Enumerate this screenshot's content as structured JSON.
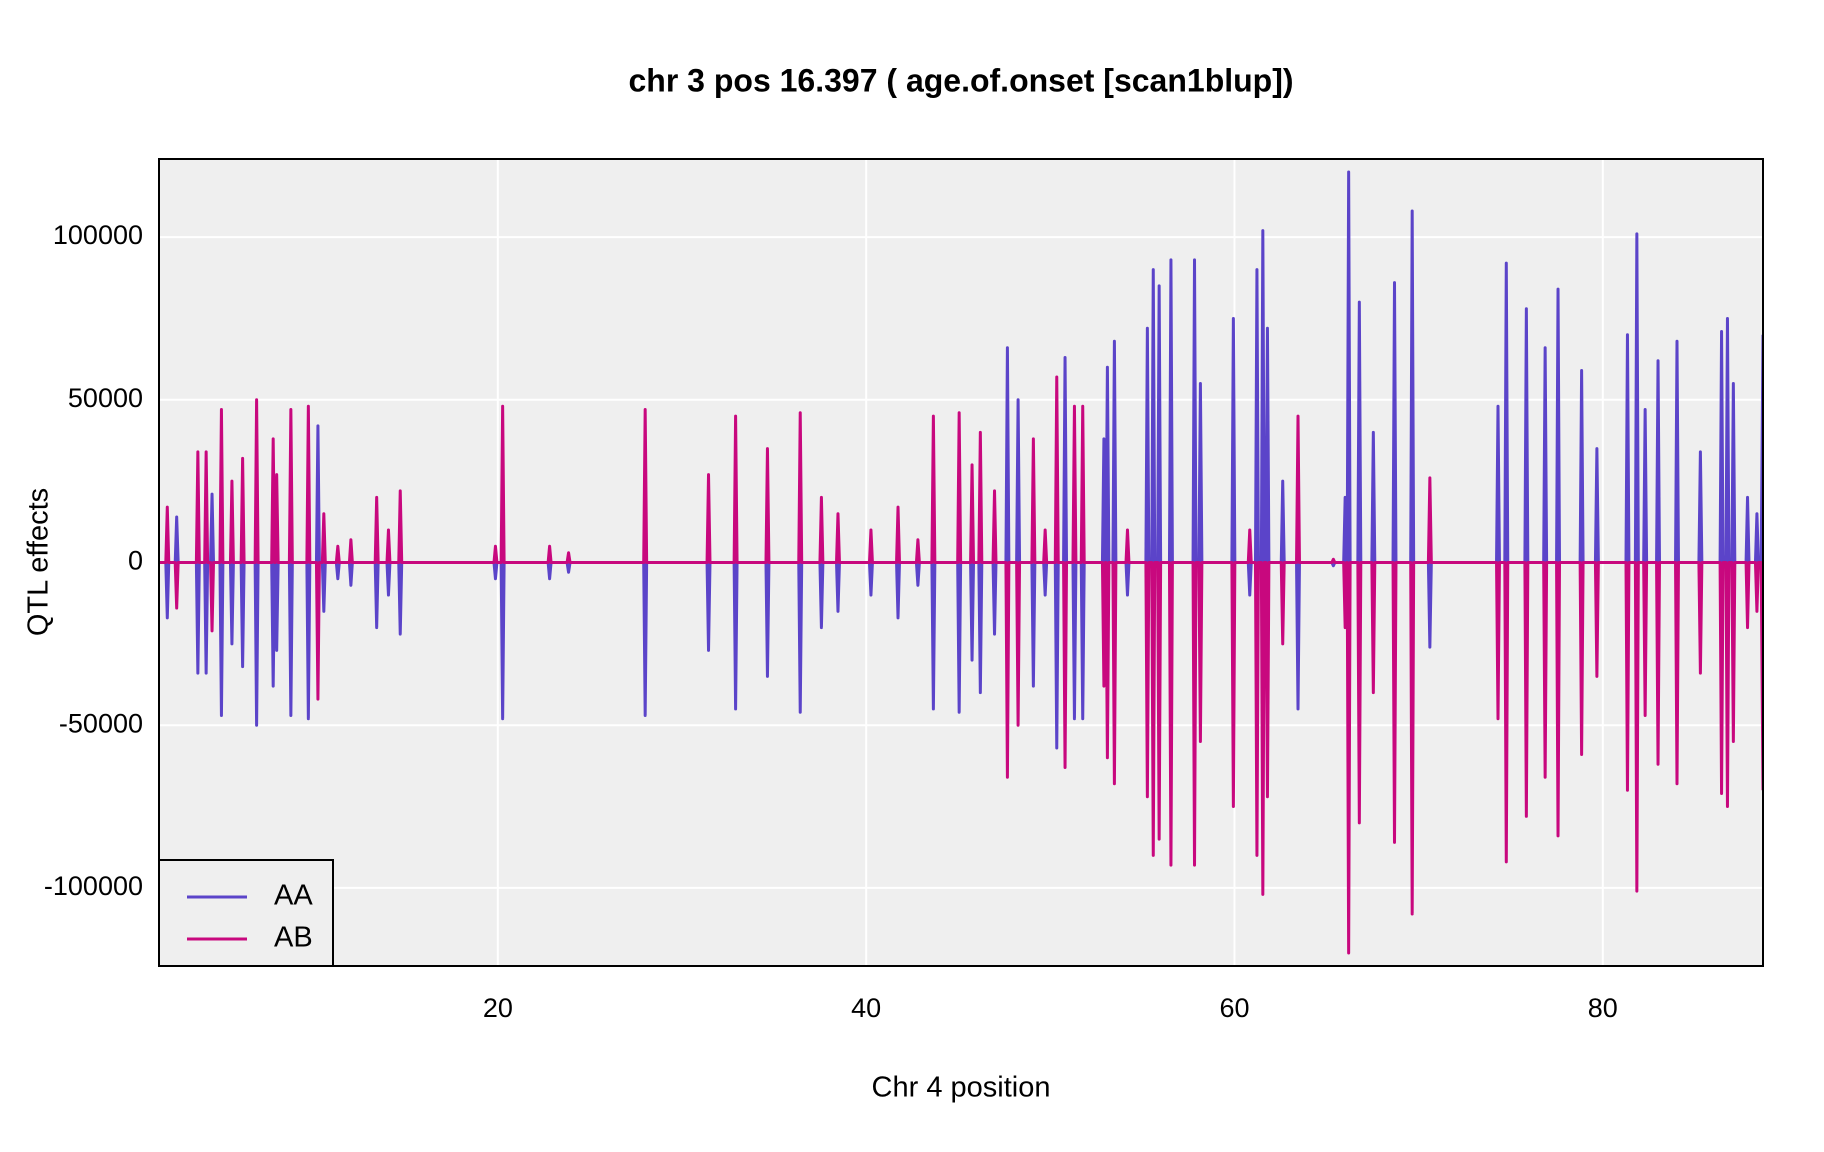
{
  "chart_data": {
    "type": "line",
    "title": "chr 3 pos 16.397 ( age.of.onset  [scan1blup])",
    "xlabel": "Chr 4 position",
    "ylabel": "QTL effects",
    "xlim": [
      1.6,
      88.7
    ],
    "ylim": [
      -124000,
      124000
    ],
    "xticks": [
      20,
      40,
      60,
      80
    ],
    "yticks": [
      -100000,
      -50000,
      0,
      50000,
      100000
    ],
    "grid": true,
    "legend": "lower left",
    "x": [
      1.6,
      1.97,
      2.05,
      2.13,
      2.48,
      2.56,
      2.64,
      3.63,
      3.71,
      3.79,
      4.08,
      4.16,
      4.24,
      4.4,
      4.48,
      4.56,
      4.91,
      4.99,
      5.07,
      5.48,
      5.56,
      5.64,
      6.06,
      6.14,
      6.22,
      6.82,
      6.9,
      6.98,
      7.72,
      7.8,
      7.88,
      7.91,
      7.99,
      8.07,
      8.68,
      8.76,
      8.84,
      9.63,
      9.71,
      9.79,
      10.15,
      10.23,
      10.31,
      10.47,
      10.55,
      10.63,
      11.23,
      11.31,
      11.39,
      11.94,
      12.02,
      12.1,
      13.34,
      13.42,
      13.5,
      13.98,
      14.06,
      14.14,
      14.62,
      14.7,
      14.78,
      19.79,
      19.87,
      19.95,
      20.18,
      20.26,
      20.34,
      22.73,
      22.81,
      22.89,
      23.76,
      23.84,
      23.92,
      27.92,
      28,
      28.08,
      31.36,
      31.44,
      31.52,
      32.83,
      32.91,
      32.99,
      34.56,
      34.64,
      34.72,
      36.34,
      36.42,
      36.5,
      37.49,
      37.57,
      37.65,
      38.39,
      38.47,
      38.55,
      40.18,
      40.26,
      40.34,
      41.65,
      41.73,
      41.81,
      42.73,
      42.81,
      42.89,
      43.57,
      43.65,
      43.73,
      44.97,
      45.05,
      45.13,
      45.67,
      45.75,
      45.83,
      46.12,
      46.2,
      46.28,
      46.89,
      46.97,
      47.05,
      47.59,
      47.67,
      47.75,
      48.17,
      48.25,
      48.33,
      49,
      49.08,
      49.16,
      49.64,
      49.72,
      49.8,
      50.27,
      50.35,
      50.43,
      50.72,
      50.8,
      50.88,
      51.23,
      51.31,
      51.39,
      51.68,
      51.76,
      51.84,
      52.83,
      52.91,
      52.99,
      53.02,
      53.1,
      53.18,
      53.4,
      53.48,
      53.56,
      54.11,
      54.19,
      54.27,
      55.19,
      55.27,
      55.35,
      55.51,
      55.59,
      55.67,
      55.83,
      55.91,
      55.99,
      56.47,
      56.55,
      56.63,
      57.75,
      57.83,
      57.91,
      58.07,
      58.15,
      58.23,
      59.86,
      59.94,
      60.02,
      60.75,
      60.83,
      60.91,
      61.14,
      61.22,
      61.3,
      61.46,
      61.54,
      61.62,
      61.71,
      61.79,
      61.87,
      62.54,
      62.62,
      62.7,
      63.37,
      63.45,
      63.53,
      65.29,
      65.37,
      65.45,
      65.93,
      66.01,
      66.09,
      66.12,
      66.2,
      66.28,
      66.7,
      66.78,
      66.86,
      67.46,
      67.54,
      67.62,
      68.61,
      68.69,
      68.77,
      69.57,
      69.65,
      69.73,
      70.53,
      70.61,
      70.69,
      74.23,
      74.31,
      74.39,
      74.68,
      74.76,
      74.84,
      75.77,
      75.85,
      75.93,
      76.79,
      76.87,
      76.95,
      77.49,
      77.57,
      77.65,
      78.77,
      78.85,
      78.93,
      79.6,
      79.68,
      79.76,
      81.26,
      81.34,
      81.42,
      81.77,
      81.85,
      81.93,
      82.22,
      82.3,
      82.38,
      82.92,
      83,
      83.08,
      83.95,
      84.03,
      84.11,
      85.22,
      85.3,
      85.38,
      86.37,
      86.45,
      86.53,
      86.69,
      86.77,
      86.85,
      87.01,
      87.09,
      87.17,
      87.78,
      87.86,
      87.94,
      88.29,
      88.37,
      88.45,
      88.6,
      88.7
    ],
    "series": [
      {
        "name": "AA",
        "color": "#5b44c9",
        "values": [
          0,
          0,
          -17000,
          0,
          0,
          14000,
          0,
          0,
          -34000,
          0,
          0,
          -34000,
          0,
          0,
          21000,
          0,
          0,
          -47000,
          0,
          0,
          -25000,
          0,
          0,
          -32000,
          0,
          0,
          -50000,
          0,
          0,
          -38000,
          0,
          0,
          -27000,
          0,
          0,
          -47000,
          0,
          0,
          -48000,
          0,
          0,
          42000,
          0,
          0,
          -15000,
          0,
          0,
          -5000,
          0,
          0,
          -7000,
          0,
          0,
          -20000,
          0,
          0,
          -10000,
          0,
          0,
          -22000,
          0,
          0,
          -5000,
          0,
          0,
          -48000,
          0,
          0,
          -5000,
          0,
          0,
          -3000,
          0,
          0,
          -47000,
          0,
          0,
          -27000,
          0,
          0,
          -45000,
          0,
          0,
          -35000,
          0,
          0,
          -46000,
          0,
          0,
          -20000,
          0,
          0,
          -15000,
          0,
          0,
          -10000,
          0,
          0,
          -17000,
          0,
          0,
          -7000,
          0,
          0,
          -45000,
          0,
          0,
          -46000,
          0,
          0,
          -30000,
          0,
          0,
          -40000,
          0,
          0,
          -22000,
          0,
          0,
          66000,
          0,
          0,
          50000,
          0,
          0,
          -38000,
          0,
          0,
          -10000,
          0,
          0,
          -57000,
          0,
          0,
          63000,
          0,
          0,
          -48000,
          0,
          0,
          -48000,
          0,
          0,
          38000,
          0,
          0,
          60000,
          0,
          0,
          68000,
          0,
          0,
          -10000,
          0,
          0,
          72000,
          0,
          0,
          90000,
          0,
          0,
          85000,
          0,
          0,
          93000,
          0,
          0,
          93000,
          0,
          0,
          55000,
          0,
          0,
          75000,
          0,
          0,
          -10000,
          0,
          0,
          90000,
          0,
          0,
          102000,
          0,
          0,
          72000,
          0,
          0,
          25000,
          0,
          0,
          -45000,
          0,
          0,
          -1000,
          0,
          0,
          20000,
          0,
          0,
          120000,
          0,
          0,
          80000,
          0,
          0,
          40000,
          0,
          0,
          86000,
          0,
          0,
          108000,
          0,
          0,
          -26000,
          0,
          0,
          48000,
          0,
          0,
          92000,
          0,
          0,
          78000,
          0,
          0,
          66000,
          0,
          0,
          84000,
          0,
          0,
          59000,
          0,
          0,
          35000,
          0,
          0,
          70000,
          0,
          0,
          101000,
          0,
          0,
          47000,
          0,
          0,
          62000,
          0,
          0,
          68000,
          0,
          0,
          34000,
          0,
          0,
          71000,
          0,
          0,
          75000,
          0,
          0,
          55000,
          0,
          0,
          20000,
          0,
          0,
          15000,
          0,
          0,
          70000
        ]
      },
      {
        "name": "AB",
        "color": "#c8087e",
        "values": [
          0,
          0,
          17000,
          0,
          0,
          -14000,
          0,
          0,
          34000,
          0,
          0,
          34000,
          0,
          0,
          -21000,
          0,
          0,
          47000,
          0,
          0,
          25000,
          0,
          0,
          32000,
          0,
          0,
          50000,
          0,
          0,
          38000,
          0,
          0,
          27000,
          0,
          0,
          47000,
          0,
          0,
          48000,
          0,
          0,
          -42000,
          0,
          0,
          15000,
          0,
          0,
          5000,
          0,
          0,
          7000,
          0,
          0,
          20000,
          0,
          0,
          10000,
          0,
          0,
          22000,
          0,
          0,
          5000,
          0,
          0,
          48000,
          0,
          0,
          5000,
          0,
          0,
          3000,
          0,
          0,
          47000,
          0,
          0,
          27000,
          0,
          0,
          45000,
          0,
          0,
          35000,
          0,
          0,
          46000,
          0,
          0,
          20000,
          0,
          0,
          15000,
          0,
          0,
          10000,
          0,
          0,
          17000,
          0,
          0,
          7000,
          0,
          0,
          45000,
          0,
          0,
          46000,
          0,
          0,
          30000,
          0,
          0,
          40000,
          0,
          0,
          22000,
          0,
          0,
          -66000,
          0,
          0,
          -50000,
          0,
          0,
          38000,
          0,
          0,
          10000,
          0,
          0,
          57000,
          0,
          0,
          -63000,
          0,
          0,
          48000,
          0,
          0,
          48000,
          0,
          0,
          -38000,
          0,
          0,
          -60000,
          0,
          0,
          -68000,
          0,
          0,
          10000,
          0,
          0,
          -72000,
          0,
          0,
          -90000,
          0,
          0,
          -85000,
          0,
          0,
          -93000,
          0,
          0,
          -93000,
          0,
          0,
          -55000,
          0,
          0,
          -75000,
          0,
          0,
          10000,
          0,
          0,
          -90000,
          0,
          0,
          -102000,
          0,
          0,
          -72000,
          0,
          0,
          -25000,
          0,
          0,
          45000,
          0,
          0,
          1000,
          0,
          0,
          -20000,
          0,
          0,
          -120000,
          0,
          0,
          -80000,
          0,
          0,
          -40000,
          0,
          0,
          -86000,
          0,
          0,
          -108000,
          0,
          0,
          26000,
          0,
          0,
          -48000,
          0,
          0,
          -92000,
          0,
          0,
          -78000,
          0,
          0,
          -66000,
          0,
          0,
          -84000,
          0,
          0,
          -59000,
          0,
          0,
          -35000,
          0,
          0,
          -70000,
          0,
          0,
          -101000,
          0,
          0,
          -47000,
          0,
          0,
          -62000,
          0,
          0,
          -68000,
          0,
          0,
          -34000,
          0,
          0,
          -71000,
          0,
          0,
          -75000,
          0,
          0,
          -55000,
          0,
          0,
          -20000,
          0,
          0,
          -15000,
          0,
          0,
          -70000
        ]
      }
    ]
  }
}
